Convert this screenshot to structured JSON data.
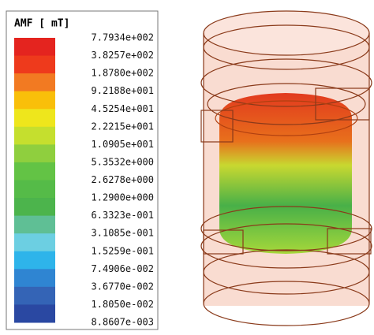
{
  "legend": {
    "title": "AMF [ mT]",
    "labels": [
      "7.7934e+002",
      "3.8257e+002",
      "1.8780e+002",
      "9.2188e+001",
      "4.5254e+001",
      "2.2215e+001",
      "1.0905e+001",
      "5.3532e+000",
      "2.6278e+000",
      "1.2900e+000",
      "6.3323e-001",
      "3.1085e-001",
      "1.5259e-001",
      "7.4906e-002",
      "3.6770e-002",
      "1.8050e-002",
      "8.8607e-003"
    ],
    "colors": [
      "#e4241f",
      "#ee3a1c",
      "#f27a22",
      "#f9bf0a",
      "#eee61c",
      "#c5df2e",
      "#8fcf3e",
      "#63c345",
      "#55bb48",
      "#4cb44c",
      "#5fbf95",
      "#6ccfe2",
      "#2eb4ea",
      "#2f85d2",
      "#3464b6",
      "#2a48a2"
    ]
  }
}
